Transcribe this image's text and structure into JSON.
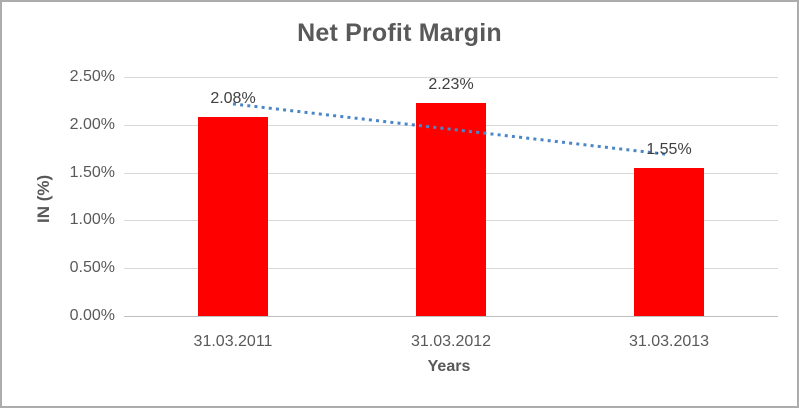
{
  "chart_data": {
    "type": "bar",
    "title": "Net Profit Margin",
    "xlabel": "Years",
    "ylabel": "IN (%)",
    "categories": [
      "31.03.2011",
      "31.03.2012",
      "31.03.2013"
    ],
    "values": [
      2.08,
      2.23,
      1.55
    ],
    "data_labels": [
      "2.08%",
      "2.23%",
      "1.55%"
    ],
    "ylim": [
      0,
      2.5
    ],
    "ytick_labels": [
      "0.00%",
      "0.50%",
      "1.00%",
      "1.50%",
      "2.00%",
      "2.50%"
    ],
    "ytick_values": [
      0,
      0.5,
      1.0,
      1.5,
      2.0,
      2.5
    ],
    "grid": true,
    "legend": false,
    "bar_color": "#FF0000",
    "trendline": {
      "type": "linear",
      "style": "dotted",
      "color": "#4A86C8"
    },
    "colors": {
      "title_text": "#595959",
      "axis_text": "#595959",
      "data_label_text": "#404040",
      "gridline": "#D9D9D9",
      "axis_line": "#BFBFBF",
      "chart_border": "#ACACAC",
      "background": "#FFFFFF"
    }
  }
}
